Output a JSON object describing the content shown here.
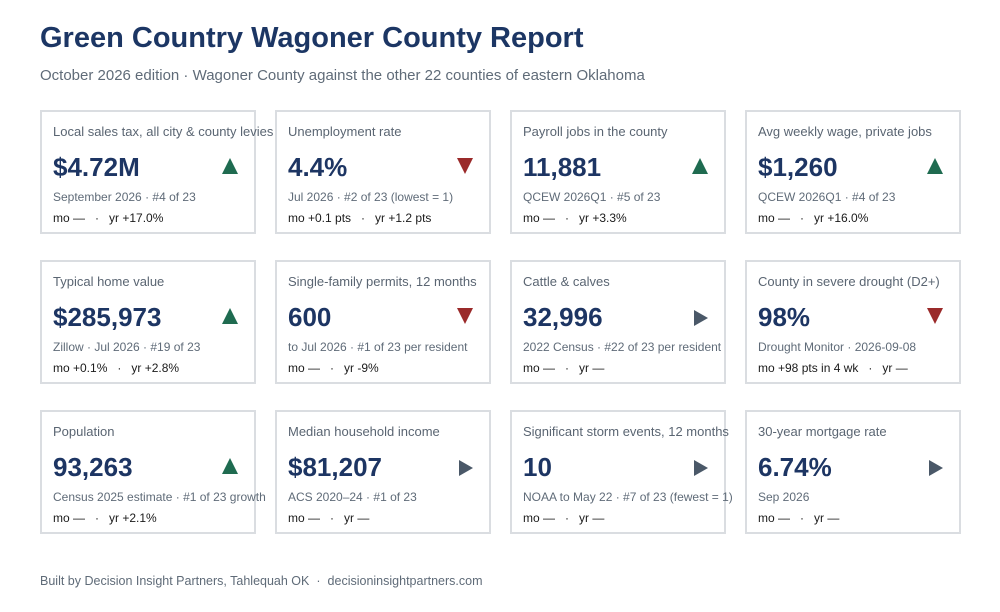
{
  "header": {
    "title": "Green Country Wagoner County Report",
    "subtitle": "October 2026 edition · Wagoner County against the other 22 counties of eastern Oklahoma"
  },
  "colors": {
    "up": "#1f6b50",
    "down": "#9a2a2a",
    "flat": "#4a5868",
    "title": "#1c3664"
  },
  "cards": [
    {
      "label": "Local sales tax, all city & county levies",
      "value": "$4.72M",
      "trend": "up",
      "trend_icon": "triangle-up-icon",
      "source": "September 2026 · #4 of 23",
      "mo": "mo —",
      "yr": "yr +17.0%"
    },
    {
      "label": "Unemployment rate",
      "value": "4.4%",
      "trend": "down",
      "trend_icon": "triangle-down-icon",
      "source": "Jul 2026 · #2 of 23 (lowest = 1)",
      "mo": "mo +0.1 pts",
      "yr": "yr +1.2 pts"
    },
    {
      "label": "Payroll jobs in the county",
      "value": "11,881",
      "trend": "up",
      "trend_icon": "triangle-up-icon",
      "source": "QCEW 2026Q1 · #5 of 23",
      "mo": "mo —",
      "yr": "yr +3.3%"
    },
    {
      "label": "Avg weekly wage, private jobs",
      "value": "$1,260",
      "trend": "up",
      "trend_icon": "triangle-up-icon",
      "source": "QCEW 2026Q1 · #4 of 23",
      "mo": "mo —",
      "yr": "yr +16.0%"
    },
    {
      "label": "Typical home value",
      "value": "$285,973",
      "trend": "up",
      "trend_icon": "triangle-up-icon",
      "source": "Zillow · Jul 2026 · #19 of 23",
      "mo": "mo +0.1%",
      "yr": "yr +2.8%"
    },
    {
      "label": "Single-family permits, 12 months",
      "value": "600",
      "trend": "down",
      "trend_icon": "triangle-down-icon",
      "source": "to Jul 2026 · #1 of 23 per resident",
      "mo": "mo —",
      "yr": "yr -9%"
    },
    {
      "label": "Cattle & calves",
      "value": "32,996",
      "trend": "flat",
      "trend_icon": "triangle-right-icon",
      "source": "2022 Census · #22 of 23 per resident",
      "mo": "mo —",
      "yr": "yr —"
    },
    {
      "label": "County in severe drought (D2+)",
      "value": "98%",
      "trend": "down",
      "trend_icon": "triangle-down-icon",
      "source": "Drought Monitor · 2026-09-08",
      "mo": "mo +98 pts in 4 wk",
      "yr": "yr —"
    },
    {
      "label": "Population",
      "value": "93,263",
      "trend": "up",
      "trend_icon": "triangle-up-icon",
      "source": "Census 2025 estimate · #1 of 23 growth",
      "mo": "mo —",
      "yr": "yr +2.1%"
    },
    {
      "label": "Median household income",
      "value": "$81,207",
      "trend": "flat",
      "trend_icon": "triangle-right-icon",
      "source": "ACS 2020–24 · #1 of 23",
      "mo": "mo —",
      "yr": "yr —"
    },
    {
      "label": "Significant storm events, 12 months",
      "value": "10",
      "trend": "flat",
      "trend_icon": "triangle-right-icon",
      "source": "NOAA to May 22 · #7 of 23 (fewest = 1)",
      "mo": "mo —",
      "yr": "yr —"
    },
    {
      "label": "30-year mortgage rate",
      "value": "6.74%",
      "trend": "flat",
      "trend_icon": "triangle-right-icon",
      "source": "Sep 2026",
      "mo": "mo —",
      "yr": "yr —"
    }
  ],
  "footer": {
    "credit": "Built by Decision Insight Partners, Tahlequah OK",
    "separator": "·",
    "site": "decisioninsightpartners.com"
  }
}
